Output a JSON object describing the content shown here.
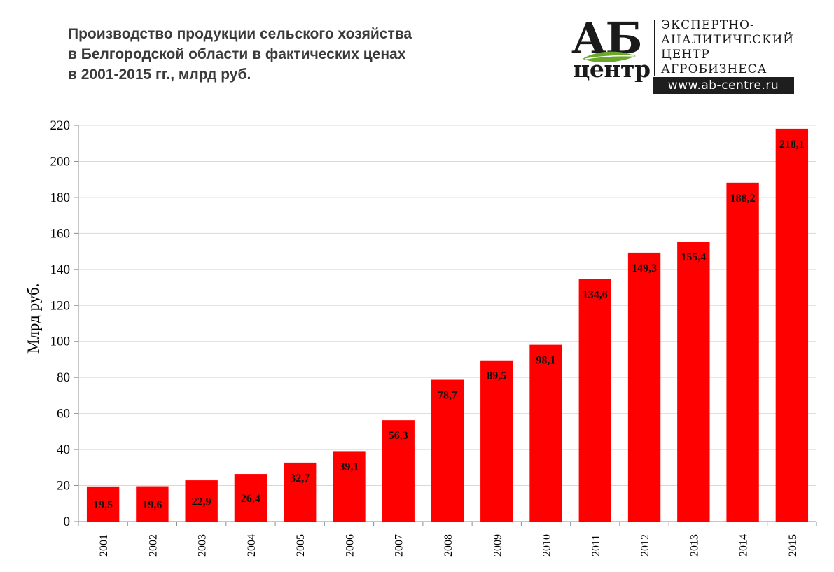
{
  "header": {
    "title_lines": [
      "Производство продукции сельского хозяйства",
      "в Белгородской области в фактических ценах",
      "в 2001-2015 гг., млрд руб."
    ]
  },
  "logo": {
    "letters": "АБ",
    "word": "центр",
    "lines": [
      "ЭКСПЕРТНО-",
      "АНАЛИТИЧЕСКИЙ",
      "ЦЕНТР",
      "АГРОБИЗНЕСА"
    ],
    "url": "www.ab-centre.ru",
    "leaf_color": "#6aa829"
  },
  "chart_data": {
    "type": "bar",
    "title": "Производство продукции сельского хозяйства в Белгородской области в фактических ценах в 2001-2015 гг., млрд руб.",
    "xlabel": "",
    "ylabel": "Млрд руб.",
    "ylim": [
      0,
      220
    ],
    "yticks": [
      0,
      20,
      40,
      60,
      80,
      100,
      120,
      140,
      160,
      180,
      200,
      220
    ],
    "grid": true,
    "legend": "none",
    "bar_color": "#ff0000",
    "categories": [
      "2001",
      "2002",
      "2003",
      "2004",
      "2005",
      "2006",
      "2007",
      "2008",
      "2009",
      "2010",
      "2011",
      "2012",
      "2013",
      "2014",
      "2015"
    ],
    "values": [
      19.5,
      19.6,
      22.9,
      26.4,
      32.7,
      39.1,
      56.3,
      78.7,
      89.5,
      98.1,
      134.6,
      149.3,
      155.4,
      188.2,
      218.1
    ],
    "data_labels": [
      "19,5",
      "19,6",
      "22,9",
      "26,4",
      "32,7",
      "39,1",
      "56,3",
      "78,7",
      "89,5",
      "98,1",
      "134,6",
      "149,3",
      "155,4",
      "188,2",
      "218,1"
    ]
  }
}
